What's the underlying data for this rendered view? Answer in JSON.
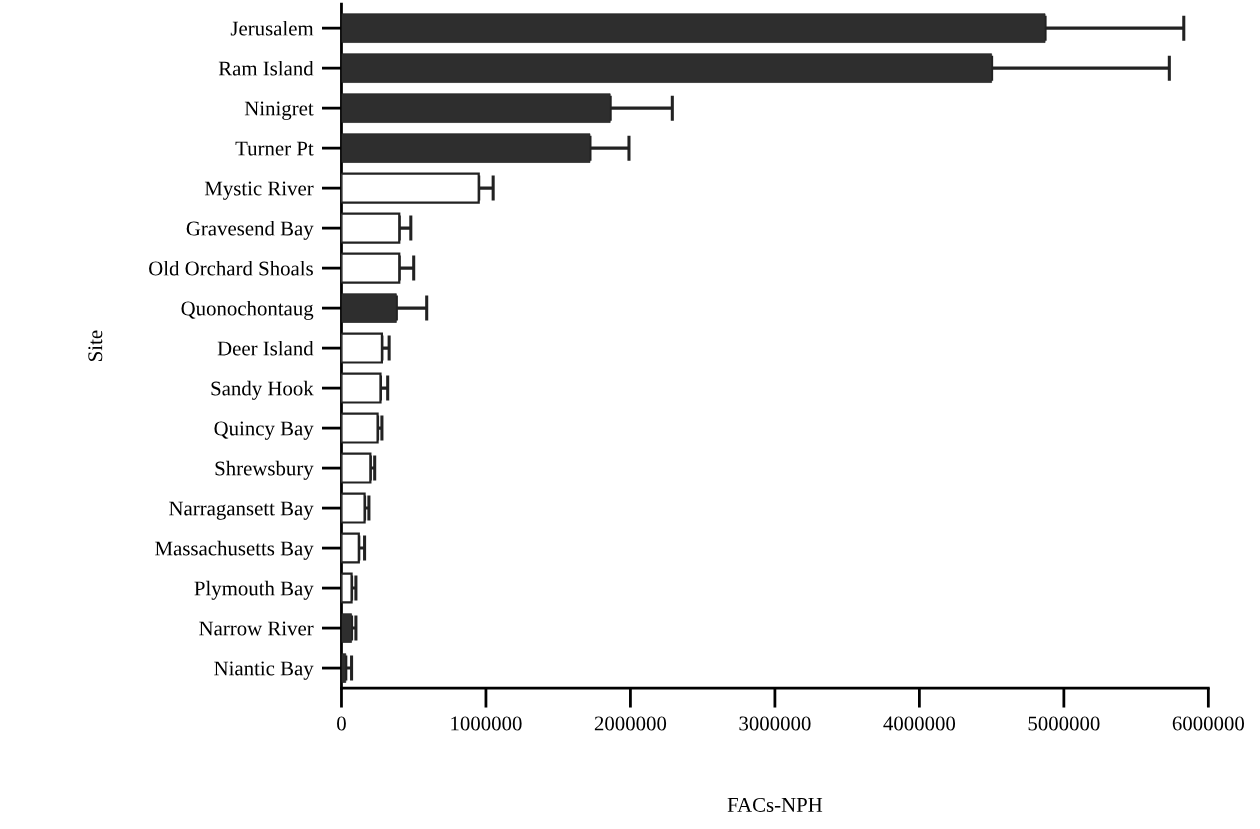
{
  "chart_data": {
    "type": "bar",
    "orientation": "horizontal",
    "xlabel": "FACs-NPH",
    "ylabel": "Site",
    "categories": [
      "Jerusalem",
      "Ram Island",
      "Ninigret",
      "Turner Pt",
      "Mystic River",
      "Gravesend Bay",
      "Old Orchard Shoals",
      "Quonochontaug",
      "Deer Island",
      "Sandy Hook",
      "Quincy Bay",
      "Shrewsbury",
      "Narragansett Bay",
      "Massachusetts Bay",
      "Plymouth Bay",
      "Narrow River",
      "Niantic Bay"
    ],
    "values": [
      4870000,
      4500000,
      1860000,
      1720000,
      950000,
      400000,
      400000,
      380000,
      280000,
      270000,
      250000,
      200000,
      160000,
      120000,
      70000,
      70000,
      30000
    ],
    "errors": [
      [
        4870000,
        5830000
      ],
      [
        4500000,
        5730000
      ],
      [
        1860000,
        2290000
      ],
      [
        1720000,
        1990000
      ],
      [
        950000,
        1050000
      ],
      [
        400000,
        480000
      ],
      [
        400000,
        500000
      ],
      [
        380000,
        590000
      ],
      [
        280000,
        330000
      ],
      [
        270000,
        320000
      ],
      [
        250000,
        280000
      ],
      [
        200000,
        230000
      ],
      [
        160000,
        190000
      ],
      [
        120000,
        160000
      ],
      [
        70000,
        100000
      ],
      [
        70000,
        100000
      ],
      [
        30000,
        70000
      ]
    ],
    "colors": [
      "#2e2e2e",
      "#2e2e2e",
      "#2e2e2e",
      "#2e2e2e",
      "#ffffff",
      "#ffffff",
      "#ffffff",
      "#2e2e2e",
      "#ffffff",
      "#ffffff",
      "#ffffff",
      "#ffffff",
      "#ffffff",
      "#ffffff",
      "#ffffff",
      "#2e2e2e",
      "#2e2e2e"
    ],
    "xlim": [
      0,
      6000000
    ],
    "xticks": [
      0,
      1000000,
      2000000,
      3000000,
      4000000,
      5000000,
      6000000
    ],
    "grid": false,
    "legend": false
  }
}
